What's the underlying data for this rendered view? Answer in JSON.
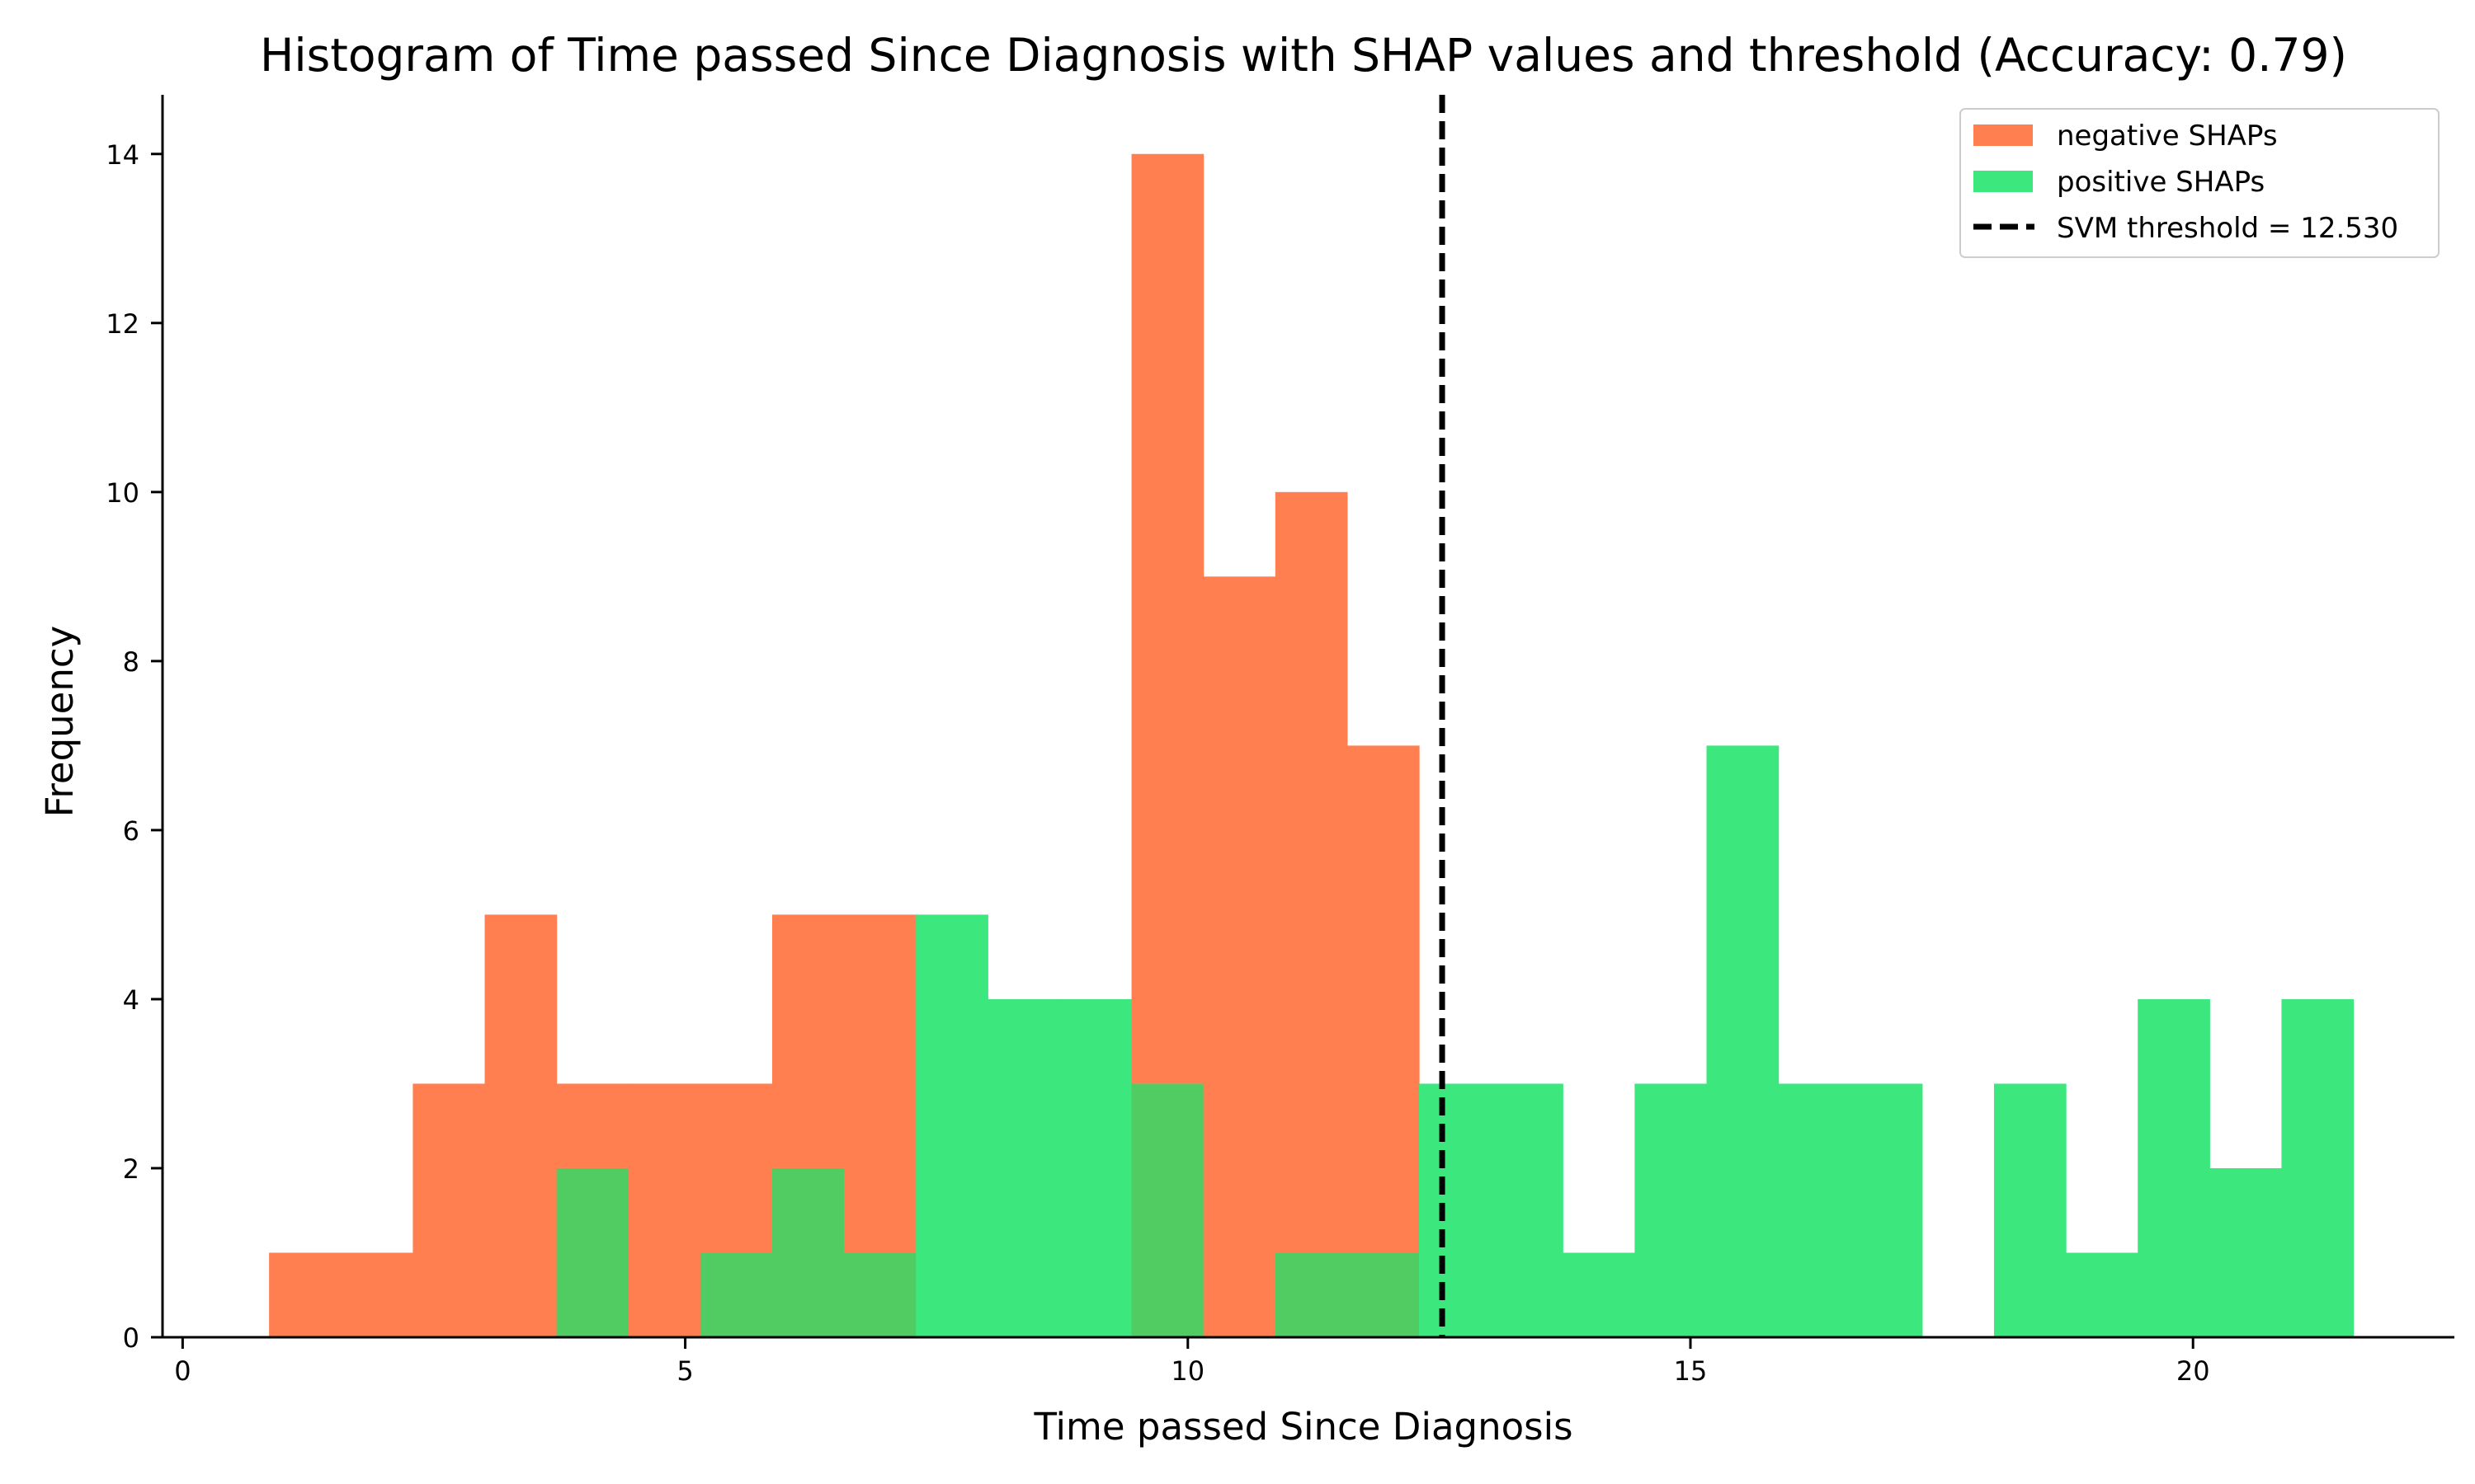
{
  "chart_data": {
    "type": "bar",
    "subtype": "histogram",
    "title": "Histogram of Time passed Since Diagnosis with SHAP values and threshold (Accuracy: 0.79)",
    "xlabel": "Time passed Since Diagnosis",
    "ylabel": "Frequency",
    "xlim": [
      -0.2,
      22.6
    ],
    "ylim": [
      0,
      14.7
    ],
    "xticks": [
      0,
      5,
      10,
      15,
      20
    ],
    "yticks": [
      0,
      2,
      4,
      6,
      8,
      10,
      12,
      14
    ],
    "bin_edges": [
      0.86,
      1.575,
      2.29,
      3.005,
      3.72,
      4.435,
      5.15,
      5.865,
      6.58,
      7.295,
      8.01,
      8.725,
      9.44,
      10.155,
      10.87,
      11.585,
      12.3,
      13.015,
      13.73,
      14.445,
      15.16,
      15.875,
      16.59,
      17.305,
      18.02,
      18.735,
      19.45,
      20.165,
      20.88,
      21.595
    ],
    "series": [
      {
        "name": "negative SHAPs",
        "color": "#ff7f50",
        "values": [
          1,
          1,
          3,
          5,
          3,
          3,
          3,
          5,
          5,
          0,
          0,
          0,
          14,
          9,
          10,
          7,
          0,
          0,
          0,
          0,
          0,
          0,
          0,
          0,
          0,
          0,
          0,
          0,
          0
        ]
      },
      {
        "name": "positive SHAPs",
        "color": "#3ce87e",
        "values": [
          0,
          0,
          0,
          0,
          2,
          0,
          1,
          2,
          1,
          5,
          4,
          4,
          3,
          0,
          1,
          1,
          3,
          3,
          1,
          3,
          7,
          3,
          3,
          0,
          3,
          1,
          4,
          2,
          4
        ]
      }
    ],
    "overlap_color": "#50cc62",
    "threshold": {
      "label": "SVM threshold = 12.530",
      "value": 12.53,
      "style": "dashed",
      "color": "#000000"
    },
    "legend_position": "top-right"
  }
}
